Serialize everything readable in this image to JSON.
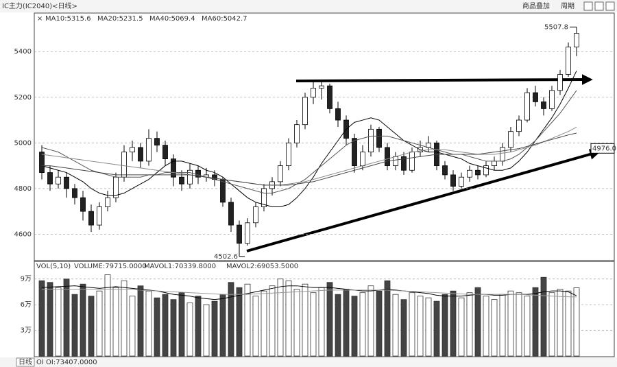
{
  "header": {
    "title": "IC主力(IC2040)<日线>",
    "buttons": [
      "商品叠加",
      "周期"
    ]
  },
  "chart_data": [
    {
      "type": "candlestick",
      "grid": true,
      "ylim": [
        4490,
        5560
      ],
      "yticks": [
        4600,
        4800,
        5000,
        5200,
        5400
      ],
      "open": [
        4960,
        4870,
        4820,
        4850,
        4800,
        4760,
        4700,
        4640,
        4720,
        4760,
        4850,
        4960,
        4980,
        4920,
        5020,
        4990,
        4930,
        4850,
        4820,
        4880,
        4850,
        4860,
        4840,
        4740,
        4640,
        4560,
        4650,
        4720,
        4800,
        4830,
        4900,
        5000,
        5080,
        5200,
        5240,
        5250,
        5150,
        5100,
        5020,
        4900,
        4960,
        5060,
        4980,
        4900,
        4940,
        4880,
        4960,
        4980,
        5000,
        4900,
        4860,
        4810,
        4850,
        4880,
        4860,
        4900,
        4920,
        4980,
        5050,
        5100,
        5220,
        5180,
        5150,
        5230,
        5300,
        5420
      ],
      "high": [
        4990,
        4900,
        4880,
        4870,
        4820,
        4790,
        4730,
        4740,
        4790,
        4870,
        4990,
        5010,
        5000,
        5060,
        5050,
        5010,
        4950,
        4880,
        4910,
        4900,
        4890,
        4880,
        4850,
        4760,
        4660,
        4670,
        4740,
        4820,
        4850,
        4920,
        5020,
        5100,
        5220,
        5270,
        5275,
        5260,
        5180,
        5120,
        5040,
        4990,
        5080,
        5070,
        5000,
        4960,
        4960,
        4980,
        5010,
        5030,
        5010,
        4920,
        4880,
        4870,
        4900,
        4900,
        4920,
        4940,
        5000,
        5070,
        5120,
        5240,
        5250,
        5200,
        5250,
        5320,
        5440,
        5507.8
      ],
      "low": [
        4840,
        4790,
        4800,
        4760,
        4730,
        4660,
        4610,
        4620,
        4700,
        4740,
        4830,
        4920,
        4890,
        4900,
        4960,
        4900,
        4810,
        4790,
        4800,
        4820,
        4830,
        4810,
        4720,
        4610,
        4502.6,
        4550,
        4630,
        4700,
        4770,
        4810,
        4880,
        4980,
        5060,
        5170,
        5190,
        5130,
        5070,
        4990,
        4870,
        4880,
        4940,
        4960,
        4880,
        4880,
        4860,
        4870,
        4940,
        4960,
        4880,
        4840,
        4790,
        4800,
        4830,
        4840,
        4850,
        4880,
        4900,
        4960,
        5030,
        5090,
        5160,
        5120,
        5140,
        5210,
        5290,
        5380
      ],
      "close": [
        4870,
        4820,
        4850,
        4800,
        4760,
        4700,
        4640,
        4720,
        4760,
        4850,
        4960,
        4980,
        4920,
        5020,
        4990,
        4930,
        4850,
        4820,
        4880,
        4850,
        4860,
        4840,
        4740,
        4640,
        4560,
        4650,
        4720,
        4800,
        4830,
        4900,
        5000,
        5080,
        5200,
        5240,
        5250,
        5150,
        5100,
        5020,
        4900,
        4960,
        5060,
        4980,
        4900,
        4940,
        4880,
        4960,
        4980,
        5000,
        4900,
        4860,
        4810,
        4850,
        4880,
        4860,
        4900,
        4920,
        4980,
        5050,
        5100,
        5220,
        5180,
        5150,
        5230,
        5300,
        5420,
        5480
      ],
      "series": [
        {
          "name": "MA10:5315.6",
          "color": "#000000",
          "values": [
            4900,
            4890,
            4880,
            4870,
            4850,
            4830,
            4800,
            4780,
            4770,
            4770,
            4780,
            4800,
            4820,
            4840,
            4870,
            4900,
            4920,
            4920,
            4910,
            4900,
            4880,
            4870,
            4850,
            4820,
            4790,
            4760,
            4740,
            4730,
            4720,
            4720,
            4730,
            4760,
            4800,
            4850,
            4910,
            4960,
            5010,
            5060,
            5090,
            5100,
            5110,
            5100,
            5070,
            5040,
            5010,
            4990,
            4970,
            4960,
            4960,
            4950,
            4940,
            4930,
            4910,
            4900,
            4890,
            4880,
            4880,
            4890,
            4920,
            4960,
            5010,
            5060,
            5110,
            5170,
            5240,
            5316
          ]
        },
        {
          "name": "MA20:5231.5",
          "color": "#555555",
          "values": [
            4980,
            4970,
            4960,
            4940,
            4920,
            4900,
            4880,
            4870,
            4860,
            4850,
            4850,
            4850,
            4850,
            4860,
            4860,
            4870,
            4870,
            4870,
            4870,
            4860,
            4850,
            4840,
            4830,
            4820,
            4810,
            4800,
            4790,
            4780,
            4780,
            4790,
            4800,
            4820,
            4840,
            4870,
            4900,
            4930,
            4960,
            4990,
            5010,
            5020,
            5030,
            5030,
            5030,
            5020,
            5010,
            5000,
            4990,
            4980,
            4970,
            4960,
            4950,
            4950,
            4940,
            4930,
            4920,
            4920,
            4920,
            4930,
            4950,
            4980,
            5010,
            5050,
            5090,
            5130,
            5180,
            5230
          ]
        },
        {
          "name": "MA40:5069.4",
          "color": "#888888",
          "values": [
            4950,
            4945,
            4940,
            4935,
            4930,
            4925,
            4920,
            4915,
            4910,
            4905,
            4900,
            4895,
            4890,
            4885,
            4880,
            4875,
            4870,
            4865,
            4860,
            4855,
            4850,
            4845,
            4840,
            4835,
            4830,
            4825,
            4820,
            4815,
            4815,
            4815,
            4820,
            4825,
            4830,
            4840,
            4850,
            4860,
            4870,
            4880,
            4890,
            4900,
            4910,
            4920,
            4930,
            4940,
            4950,
            4960,
            4965,
            4970,
            4970,
            4970,
            4965,
            4960,
            4955,
            4950,
            4950,
            4950,
            4955,
            4960,
            4970,
            4980,
            4990,
            5005,
            5020,
            5035,
            5050,
            5069
          ]
        },
        {
          "name": "MA60:5042.7",
          "color": "#444444",
          "values": [
            4900,
            4900,
            4895,
            4890,
            4885,
            4880,
            4875,
            4870,
            4865,
            4860,
            4860,
            4860,
            4860,
            4860,
            4860,
            4860,
            4860,
            4860,
            4860,
            4855,
            4850,
            4845,
            4840,
            4835,
            4830,
            4825,
            4820,
            4815,
            4815,
            4815,
            4815,
            4820,
            4825,
            4830,
            4840,
            4850,
            4860,
            4870,
            4880,
            4890,
            4900,
            4910,
            4920,
            4925,
            4930,
            4935,
            4940,
            4945,
            4950,
            4950,
            4950,
            4950,
            4950,
            4950,
            4955,
            4960,
            4965,
            4970,
            4975,
            4985,
            4995,
            5005,
            5015,
            5025,
            5035,
            5043
          ]
        }
      ],
      "high_label": 5507.8,
      "low_label": 4502.6,
      "price_tag": {
        "value": 4976,
        "label": "4976.0"
      }
    },
    {
      "type": "bar",
      "indicator": "VOL(5,10)",
      "name": "VOLUME:79715.0000",
      "ylim": [
        0,
        109000
      ],
      "yticks": [
        {
          "value": 30000,
          "label": "3万"
        },
        {
          "value": 60000,
          "label": "6万"
        },
        {
          "value": 90000,
          "label": "9万"
        }
      ],
      "values": [
        88000,
        86000,
        80000,
        90000,
        72000,
        84000,
        70000,
        76000,
        95000,
        80000,
        88000,
        70000,
        82000,
        76000,
        68000,
        72000,
        66000,
        74000,
        62000,
        70000,
        60000,
        64000,
        72000,
        86000,
        80000,
        84000,
        70000,
        76000,
        82000,
        90000,
        88000,
        78000,
        84000,
        74000,
        80000,
        86000,
        72000,
        78000,
        70000,
        74000,
        82000,
        76000,
        88000,
        72000,
        66000,
        74000,
        70000,
        68000,
        64000,
        72000,
        76000,
        68000,
        74000,
        80000,
        70000,
        66000,
        72000,
        76000,
        74000,
        70000,
        80000,
        92000,
        74000,
        78000,
        76000,
        79715
      ],
      "series": [
        {
          "name": "MAVOL1:70339.8000",
          "color": "#000000",
          "values": [
            80000,
            80500,
            81000,
            81500,
            82000,
            81000,
            80000,
            79000,
            80000,
            81000,
            80000,
            79000,
            78000,
            77000,
            76000,
            74000,
            72000,
            71000,
            70000,
            68000,
            67000,
            66000,
            67000,
            69000,
            71000,
            73000,
            75000,
            77000,
            79000,
            81000,
            82000,
            82000,
            81000,
            80000,
            80000,
            80000,
            79000,
            78000,
            77000,
            76000,
            76000,
            77000,
            78000,
            77000,
            76000,
            75000,
            74000,
            73000,
            71000,
            70000,
            70000,
            70000,
            71000,
            72000,
            72000,
            71000,
            71000,
            72000,
            72000,
            72000,
            73000,
            75000,
            76000,
            76000,
            75000,
            70340
          ]
        },
        {
          "name": "MAVOL2:69053.5000",
          "color": "#999999",
          "values": [
            78000,
            78000,
            78000,
            78000,
            78000,
            78000,
            78000,
            78000,
            78000,
            78000,
            78000,
            77500,
            77000,
            76500,
            76000,
            75500,
            75000,
            74500,
            74000,
            73500,
            73000,
            72500,
            72000,
            72000,
            72000,
            72000,
            72500,
            73000,
            73500,
            74000,
            74500,
            75000,
            75500,
            76000,
            76500,
            77000,
            77000,
            77000,
            77000,
            77000,
            77000,
            77000,
            77000,
            76500,
            76000,
            75500,
            75000,
            74500,
            74000,
            73500,
            73000,
            72500,
            72000,
            72000,
            72000,
            72000,
            72000,
            72000,
            72000,
            71500,
            71000,
            70500,
            70000,
            69500,
            69200,
            69050
          ]
        }
      ]
    }
  ],
  "footer": {
    "tab": "日线",
    "oi": "OI OI:73407.0000"
  }
}
